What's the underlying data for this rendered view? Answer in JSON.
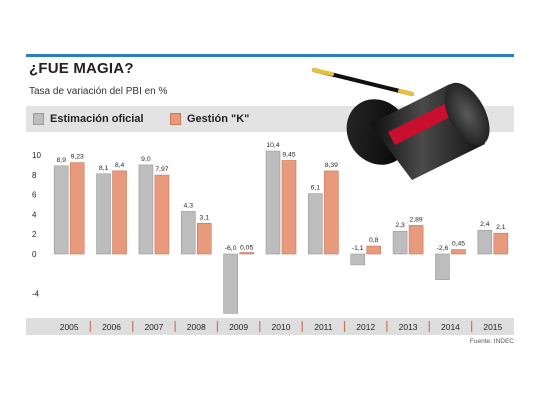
{
  "header": {
    "title": "¿FUE MAGIA?",
    "subtitle": "Tasa de variación del PBI en %"
  },
  "legend": {
    "official_label": "Estimación oficial",
    "k_label": "Gestión \"K\""
  },
  "source": "Fuente: INDEC",
  "colors": {
    "accent": "#2b7fb8",
    "official": "#bdbdbd",
    "k": "#e89a7d",
    "axis_band": "#dedede"
  },
  "illustration": {
    "icon": "magic-top-hat-icon"
  },
  "chart_data": {
    "type": "bar",
    "categories": [
      "2005",
      "2006",
      "2007",
      "2008",
      "2009",
      "2010",
      "2011",
      "2012",
      "2013",
      "2014",
      "2015"
    ],
    "series": [
      {
        "name": "Estimación oficial",
        "values": [
          8.9,
          8.1,
          9.0,
          4.3,
          -6.0,
          10.4,
          6.1,
          -1.1,
          2.3,
          -2.6,
          2.4
        ],
        "labels": [
          "8,9",
          "8,1",
          "9,0",
          "4,3",
          "-6,0",
          "10,4",
          "6,1",
          "-1,1",
          "2,3",
          "-2,6",
          "2,4"
        ]
      },
      {
        "name": "Gestión \"K\"",
        "values": [
          9.23,
          8.4,
          7.97,
          3.1,
          0.05,
          9.45,
          8.39,
          0.8,
          2.89,
          0.45,
          2.1
        ],
        "labels": [
          "9,23",
          "8,4",
          "7,97",
          "3,1",
          "0,05",
          "9,45",
          "8,39",
          "0,8",
          "2,89",
          "0,45",
          "2,1"
        ]
      }
    ],
    "yticks": [
      "10",
      "8",
      "6",
      "4",
      "2",
      "0",
      "-4"
    ],
    "ytick_values": [
      10,
      8,
      6,
      4,
      2,
      0,
      -4
    ],
    "ylim": [
      -6,
      10.5
    ],
    "grid": false,
    "legend": "top-left"
  }
}
